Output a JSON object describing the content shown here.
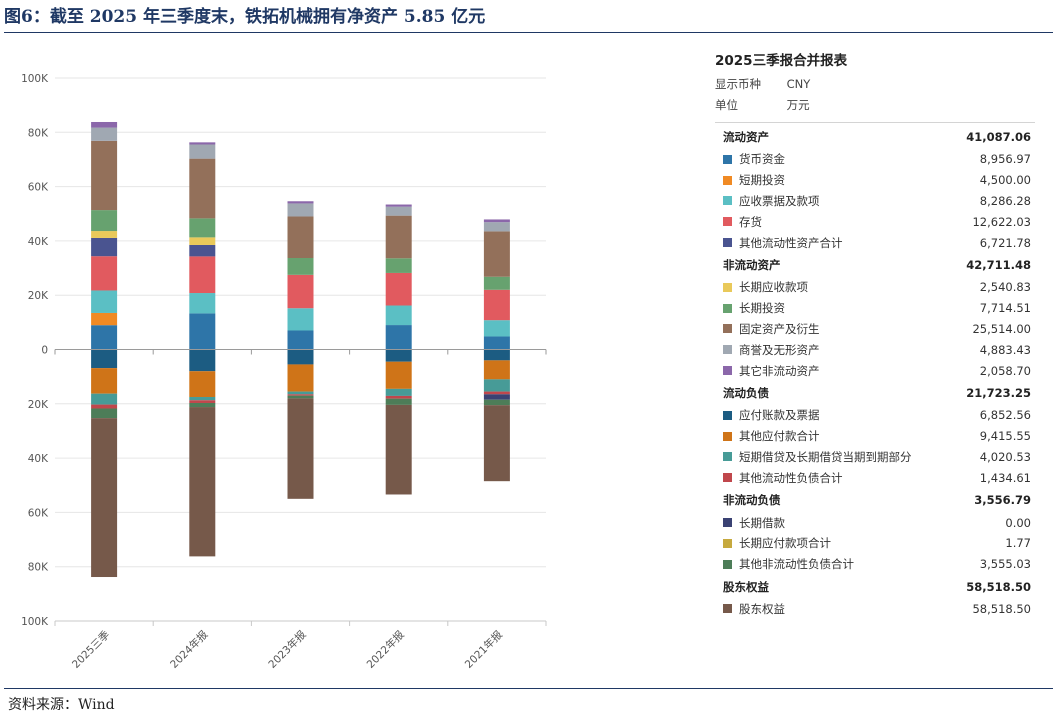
{
  "title": "图6：截至 2025 年三季度末，铁拓机械拥有净资产 5.85 亿元",
  "source": "资料来源：Wind",
  "colors": {
    "货币资金": "#2e75a8",
    "短期投资": "#f08a24",
    "应收票据及款项": "#5bbfc4",
    "存货": "#e15a5f",
    "其他流动性资产合计": "#4a5490",
    "长期应收款项": "#e9c95a",
    "长期投资": "#67a26f",
    "固定资产及衍生": "#93705a",
    "商誉及无形资产": "#a0a8b2",
    "其它非流动资产": "#8b67aa",
    "应付账款及票据": "#1c5c82",
    "其他应付款合计": "#cf7418",
    "短期借贷及长期借贷当期到期部分": "#479b97",
    "其他流动性负债合计": "#c0474c",
    "长期借款": "#3a4273",
    "长期应付款项合计": "#c6a93e",
    "其他非流动性负债合计": "#4d7d58",
    "股东权益": "#76594a"
  },
  "chart_data": {
    "type": "bar",
    "stacked": true,
    "categories": [
      "2025三季",
      "2024年报",
      "2023年报",
      "2022年报",
      "2021年报"
    ],
    "ylim": [
      -100000,
      100000
    ],
    "yticks": [
      100000,
      80000,
      60000,
      40000,
      20000,
      0,
      -20000,
      -40000,
      -60000,
      -80000,
      -100000
    ],
    "ytick_labels": [
      "100K",
      "80K",
      "60K",
      "40K",
      "20K",
      "0",
      "20K",
      "40K",
      "60K",
      "80K",
      "100K"
    ],
    "assets": [
      {
        "name": "货币资金",
        "values": [
          8957,
          13300,
          7000,
          9000,
          4800
        ]
      },
      {
        "name": "短期投资",
        "values": [
          4500,
          0,
          0,
          0,
          0
        ]
      },
      {
        "name": "应收票据及款项",
        "values": [
          8286,
          7500,
          8200,
          7200,
          6000
        ]
      },
      {
        "name": "存货",
        "values": [
          12622,
          13500,
          12300,
          12000,
          11200
        ]
      },
      {
        "name": "其他流动性资产合计",
        "values": [
          6722,
          4200,
          0,
          0,
          0
        ]
      },
      {
        "name": "长期应收款项",
        "values": [
          2541,
          2800,
          0,
          0,
          0
        ]
      },
      {
        "name": "长期投资",
        "values": [
          7715,
          7000,
          6200,
          5400,
          4800
        ]
      },
      {
        "name": "固定资产及衍生",
        "values": [
          25514,
          22000,
          15300,
          15700,
          16700
        ]
      },
      {
        "name": "商誉及无形资产",
        "values": [
          4883,
          5200,
          4800,
          3300,
          3400
        ]
      },
      {
        "name": "其它非流动资产",
        "values": [
          2059,
          800,
          800,
          800,
          1000
        ]
      }
    ],
    "liabilities": [
      {
        "name": "应付账款及票据",
        "values": [
          6853,
          8000,
          5500,
          4500,
          4000
        ]
      },
      {
        "name": "其他应付款合计",
        "values": [
          9416,
          9500,
          10000,
          10000,
          7000
        ]
      },
      {
        "name": "短期借贷及长期借贷当期到期部分",
        "values": [
          4021,
          1200,
          1000,
          2600,
          4500
        ]
      },
      {
        "name": "其他流动性负债合计",
        "values": [
          1435,
          1000,
          500,
          1000,
          1000
        ]
      },
      {
        "name": "长期借款",
        "values": [
          0,
          0,
          0,
          0,
          2000
        ]
      },
      {
        "name": "长期应付款项合计",
        "values": [
          2,
          0,
          0,
          0,
          0
        ]
      },
      {
        "name": "其他非流动性负债合计",
        "values": [
          3555,
          1500,
          1000,
          2300,
          2000
        ]
      },
      {
        "name": "股东权益",
        "values": [
          58519,
          55000,
          37000,
          33000,
          28000
        ]
      }
    ]
  },
  "panel": {
    "title": "2025三季报合并报表",
    "currency_label": "显示币种",
    "currency_value": "CNY",
    "unit_label": "单位",
    "unit_value": "万元",
    "groups": [
      {
        "name": "流动资产",
        "total": "41,087.06",
        "items": [
          {
            "name": "货币资金",
            "value": "8,956.97"
          },
          {
            "name": "短期投资",
            "value": "4,500.00"
          },
          {
            "name": "应收票据及款项",
            "value": "8,286.28"
          },
          {
            "name": "存货",
            "value": "12,622.03"
          },
          {
            "name": "其他流动性资产合计",
            "value": "6,721.78"
          }
        ]
      },
      {
        "name": "非流动资产",
        "total": "42,711.48",
        "items": [
          {
            "name": "长期应收款项",
            "value": "2,540.83"
          },
          {
            "name": "长期投资",
            "value": "7,714.51"
          },
          {
            "name": "固定资产及衍生",
            "value": "25,514.00"
          },
          {
            "name": "商誉及无形资产",
            "value": "4,883.43"
          },
          {
            "name": "其它非流动资产",
            "value": "2,058.70"
          }
        ]
      },
      {
        "name": "流动负债",
        "total": "21,723.25",
        "items": [
          {
            "name": "应付账款及票据",
            "value": "6,852.56"
          },
          {
            "name": "其他应付款合计",
            "value": "9,415.55"
          },
          {
            "name": "短期借贷及长期借贷当期到期部分",
            "value": "4,020.53"
          },
          {
            "name": "其他流动性负债合计",
            "value": "1,434.61"
          }
        ]
      },
      {
        "name": "非流动负债",
        "total": "3,556.79",
        "items": [
          {
            "name": "长期借款",
            "value": "0.00"
          },
          {
            "name": "长期应付款项合计",
            "value": "1.77"
          },
          {
            "name": "其他非流动性负债合计",
            "value": "3,555.03"
          }
        ]
      },
      {
        "name": "股东权益",
        "total": "58,518.50",
        "items": [
          {
            "name": "股东权益",
            "value": "58,518.50"
          }
        ]
      }
    ]
  }
}
